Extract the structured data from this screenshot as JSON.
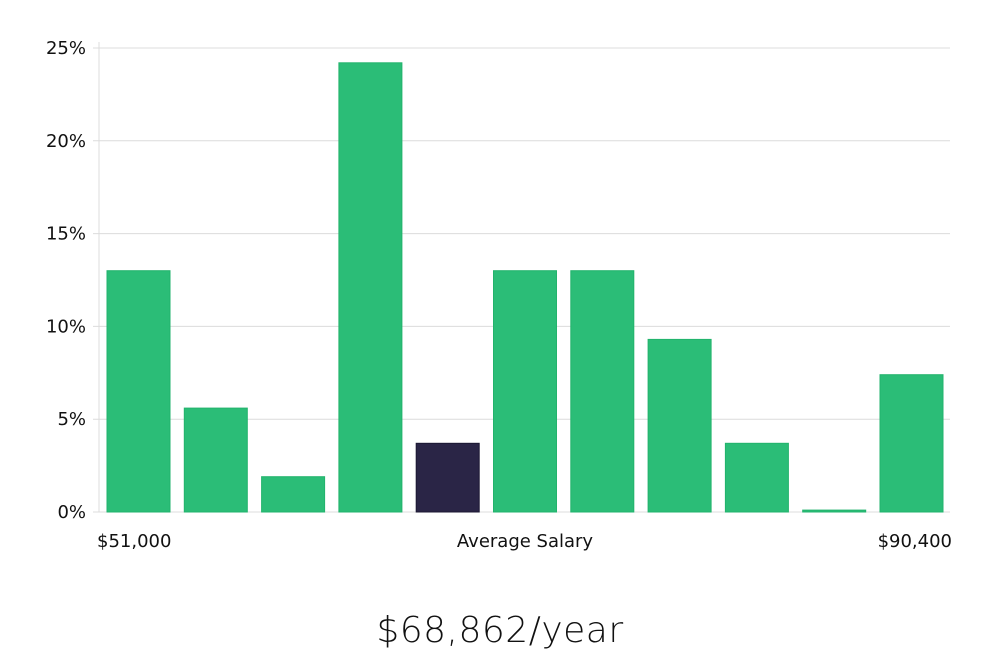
{
  "chart_data": {
    "type": "bar",
    "x_labels": {
      "left": "$51,000",
      "center": "Average Salary",
      "right": "$90,400"
    },
    "y_ticks": [
      "0%",
      "5%",
      "10%",
      "15%",
      "20%",
      "25%"
    ],
    "ylim": [
      0,
      25
    ],
    "bar_count": 11,
    "values": [
      13.0,
      5.6,
      1.9,
      24.2,
      3.7,
      13.0,
      13.0,
      9.3,
      3.7,
      0.1,
      7.4
    ],
    "highlight_index": 4,
    "colors": {
      "bar": "#2bbd77",
      "highlight": "#2a2546",
      "grid": "#dcdcdc"
    },
    "grid": true
  },
  "salary_display": "$68,862/year"
}
